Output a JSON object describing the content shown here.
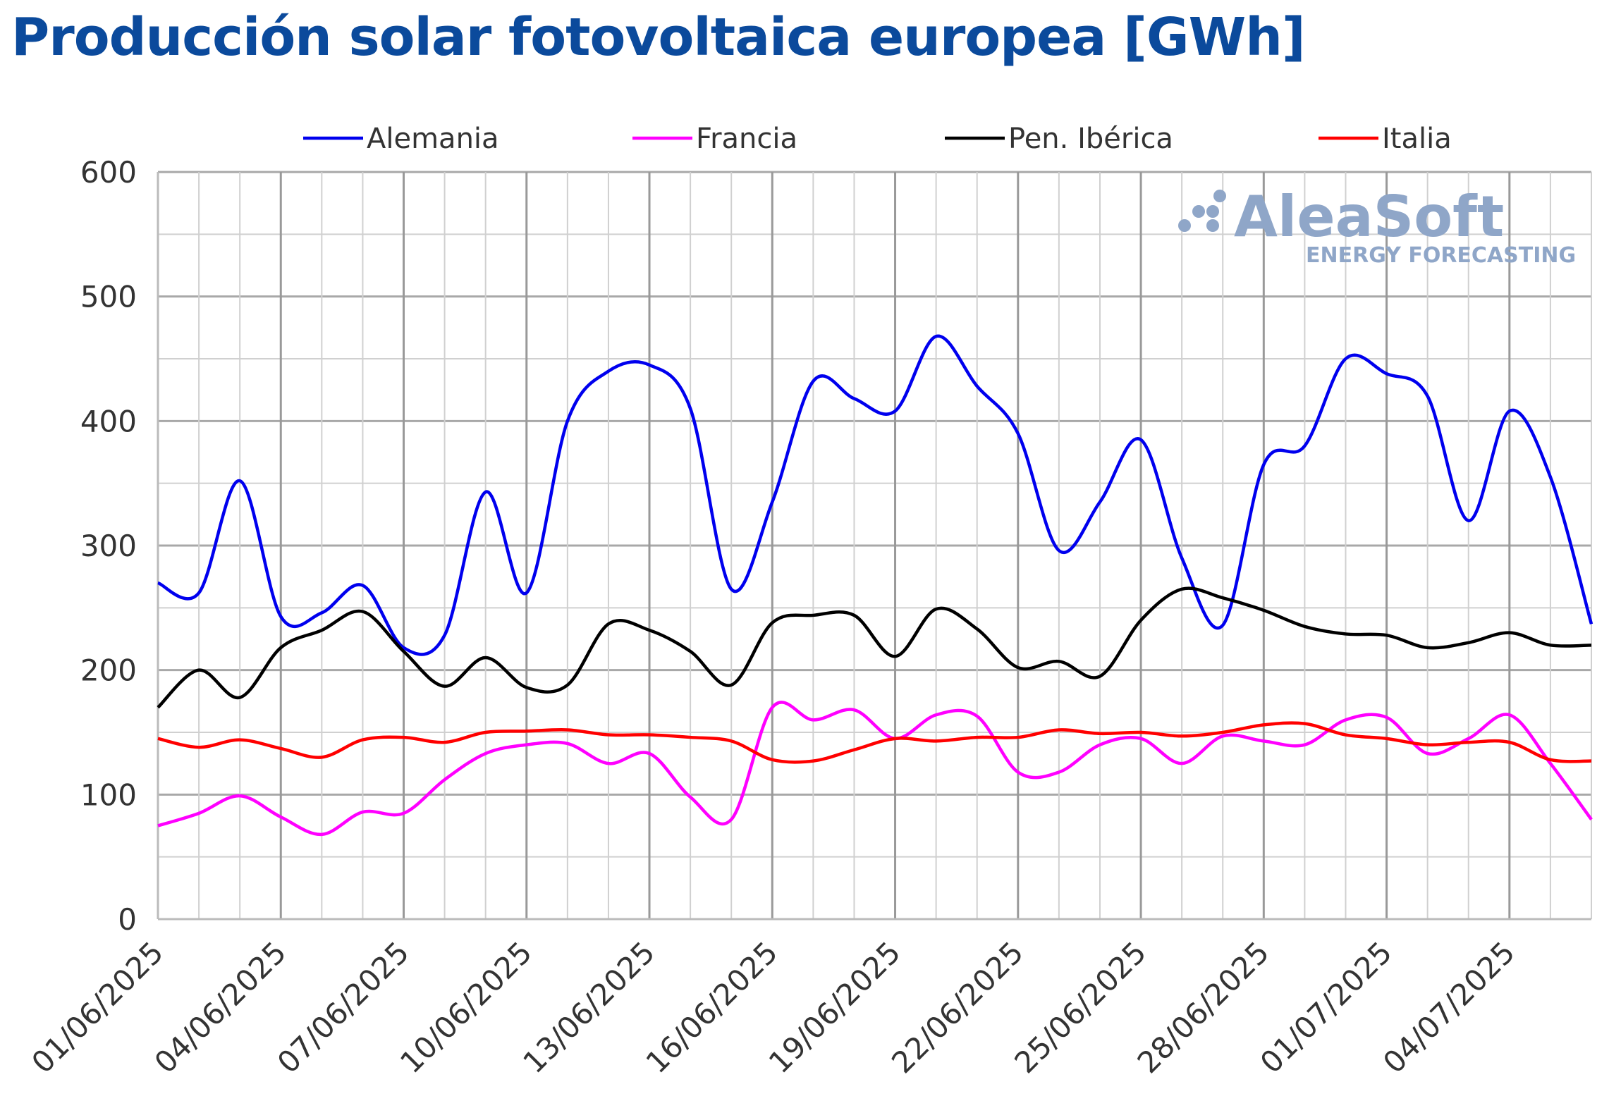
{
  "chart_data": {
    "type": "line",
    "title": "Producción solar fotovoltaica europea [GWh]",
    "xlabel": "",
    "ylabel": "",
    "ylim": [
      0,
      600
    ],
    "yticks": [
      "0",
      "100",
      "200",
      "300",
      "400",
      "500",
      "600"
    ],
    "grid": true,
    "legend": "top",
    "x": [
      "01/06/2025",
      "02/06/2025",
      "03/06/2025",
      "04/06/2025",
      "05/06/2025",
      "06/06/2025",
      "07/06/2025",
      "08/06/2025",
      "09/06/2025",
      "10/06/2025",
      "11/06/2025",
      "12/06/2025",
      "13/06/2025",
      "14/06/2025",
      "15/06/2025",
      "16/06/2025",
      "17/06/2025",
      "18/06/2025",
      "19/06/2025",
      "20/06/2025",
      "21/06/2025",
      "22/06/2025",
      "23/06/2025",
      "24/06/2025",
      "25/06/2025",
      "26/06/2025",
      "27/06/2025",
      "28/06/2025",
      "29/06/2025",
      "30/06/2025",
      "01/07/2025",
      "02/07/2025",
      "03/07/2025",
      "04/07/2025",
      "05/07/2025",
      "06/07/2025"
    ],
    "xtick_labels": [
      "01/06/2025",
      "04/06/2025",
      "07/06/2025",
      "10/06/2025",
      "13/06/2025",
      "16/06/2025",
      "19/06/2025",
      "22/06/2025",
      "25/06/2025",
      "28/06/2025",
      "01/07/2025",
      "04/07/2025"
    ],
    "series": [
      {
        "name": "Alemania",
        "color": "#0000ee",
        "values": [
          270,
          262,
          352,
          243,
          246,
          268,
          218,
          228,
          343,
          262,
          400,
          440,
          445,
          410,
          265,
          335,
          432,
          418,
          408,
          468,
          428,
          390,
          296,
          335,
          385,
          290,
          236,
          365,
          380,
          450,
          438,
          420,
          320,
          408,
          355,
          237
        ]
      },
      {
        "name": "Francia",
        "color": "#ff00ff",
        "values": [
          75,
          85,
          99,
          82,
          68,
          86,
          85,
          112,
          133,
          140,
          141,
          125,
          133,
          98,
          80,
          170,
          160,
          168,
          145,
          164,
          163,
          118,
          118,
          140,
          145,
          125,
          147,
          143,
          140,
          160,
          162,
          133,
          145,
          164,
          125,
          80
        ]
      },
      {
        "name": "Pen. Ibérica",
        "color": "#000000",
        "values": [
          170,
          200,
          178,
          218,
          232,
          247,
          215,
          187,
          210,
          186,
          188,
          237,
          232,
          215,
          188,
          238,
          244,
          244,
          211,
          249,
          233,
          202,
          207,
          195,
          240,
          265,
          258,
          248,
          235,
          229,
          228,
          218,
          222,
          230,
          220,
          220
        ]
      },
      {
        "name": "Italia",
        "color": "#ff0000",
        "values": [
          145,
          138,
          144,
          137,
          130,
          144,
          146,
          142,
          150,
          151,
          152,
          148,
          148,
          146,
          143,
          128,
          127,
          136,
          145,
          143,
          146,
          146,
          152,
          149,
          150,
          147,
          150,
          156,
          157,
          148,
          145,
          140,
          142,
          142,
          128,
          127
        ]
      }
    ]
  },
  "watermark": {
    "brand": "AleaSoft",
    "tagline": "ENERGY FORECASTING",
    "color": "#8fa6c8"
  }
}
